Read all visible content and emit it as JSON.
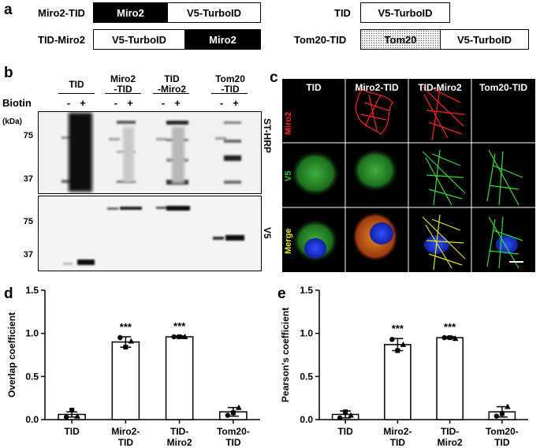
{
  "panels": {
    "a": "a",
    "b": "b",
    "c": "c",
    "d": "d",
    "e": "e"
  },
  "panel_a": {
    "constructs": [
      {
        "name": "Miro2-TID",
        "segments": [
          "Miro2",
          "V5-TurboID"
        ]
      },
      {
        "name": "TID-Miro2",
        "segments": [
          "V5-TurboID",
          "Miro2"
        ]
      },
      {
        "name": "TID",
        "segments": [
          "V5-TurboID"
        ]
      },
      {
        "name": "Tom20-TID",
        "segments": [
          "Tom20",
          "V5-TurboID"
        ]
      }
    ]
  },
  "panel_b": {
    "lanes": [
      "TID",
      "Miro2\n-TID",
      "TID\n-Miro2",
      "Tom20\n-TID"
    ],
    "biotin_label": "Biotin",
    "signs": [
      "-",
      "+",
      "-",
      "+",
      "-",
      "+",
      "-",
      "+"
    ],
    "kda_label": "(kDa)",
    "markers_top": [
      "75",
      "37"
    ],
    "markers_bottom": [
      "75",
      "37"
    ],
    "blot_top_label": "ST-HRP",
    "blot_bottom_label": "V5"
  },
  "panel_c": {
    "columns": [
      "TID",
      "Miro2-TID",
      "TID-Miro2",
      "Tom20-TID"
    ],
    "rows": [
      "Miro2",
      "V5",
      "Merge"
    ],
    "row_colors": [
      "#ff2020",
      "#22cc22",
      "#e6e600"
    ]
  },
  "chart_data": [
    {
      "type": "bar",
      "panel": "d",
      "categories": [
        "TID",
        "Miro2-\nTID",
        "TID-\nMiro2",
        "Tom20-\nTID"
      ],
      "values": [
        0.06,
        0.9,
        0.96,
        0.09
      ],
      "errors": [
        0.03,
        0.06,
        0.01,
        0.05
      ],
      "points": [
        [
          0.03,
          0.11,
          0.04
        ],
        [
          0.95,
          0.84,
          0.91
        ],
        [
          0.96,
          0.96,
          0.96
        ],
        [
          0.05,
          0.08,
          0.14
        ]
      ],
      "annotations": [
        "",
        "***",
        "***",
        ""
      ],
      "ylabel": "Overlap coefficient",
      "ylim": [
        0,
        1.5
      ],
      "yticks": [
        "0.0",
        "0.5",
        "1.0",
        "1.5"
      ]
    },
    {
      "type": "bar",
      "panel": "e",
      "categories": [
        "TID",
        "Miro2-\nTID",
        "TID-\nMiro2",
        "Tom20-\nTID"
      ],
      "values": [
        0.06,
        0.87,
        0.95,
        0.09
      ],
      "errors": [
        0.04,
        0.07,
        0.01,
        0.06
      ],
      "points": [
        [
          0.02,
          0.09,
          0.05
        ],
        [
          0.93,
          0.8,
          0.87
        ],
        [
          0.95,
          0.95,
          0.94
        ],
        [
          0.04,
          0.07,
          0.15
        ]
      ],
      "annotations": [
        "",
        "***",
        "***",
        ""
      ],
      "ylabel": "Pearson's coefficient",
      "ylim": [
        0,
        1.5
      ],
      "yticks": [
        "0.0",
        "0.5",
        "1.0",
        "1.5"
      ]
    }
  ]
}
